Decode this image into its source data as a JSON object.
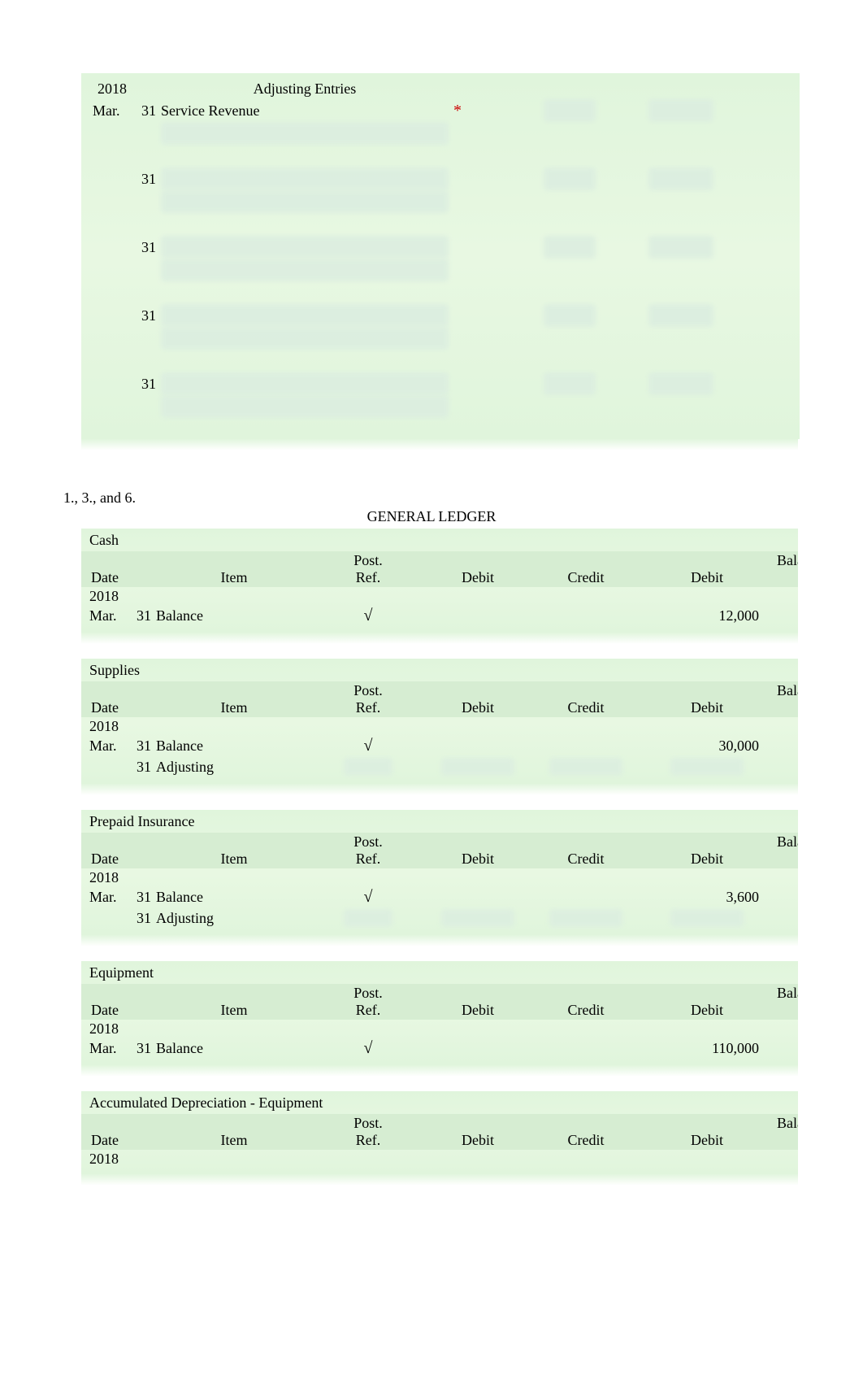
{
  "adjusting": {
    "year": "2018",
    "title": "Adjusting Entries",
    "rows": [
      {
        "month": "Mar.",
        "day": "31",
        "item": "Service Revenue",
        "asterisk": "*"
      },
      {
        "month": "",
        "day": "31",
        "item": ""
      },
      {
        "month": "",
        "day": "31",
        "item": ""
      },
      {
        "month": "",
        "day": "31",
        "item": ""
      },
      {
        "month": "",
        "day": "31",
        "item": ""
      }
    ]
  },
  "section_label": "1., 3., and 6.",
  "ledger_title": "GENERAL LEDGER",
  "headers": {
    "date": "Date",
    "item": "Item",
    "post_top": "Post.",
    "post_bot": "Ref.",
    "debit": "Debit",
    "credit": "Credit",
    "bal_top": "Balan",
    "bal_debit": "Debit"
  },
  "year": "2018",
  "accounts": [
    {
      "name": "Cash",
      "rows": [
        {
          "month": "Mar.",
          "day": "31",
          "item": "Balance",
          "ref": "√",
          "debit": "",
          "credit": "",
          "bal_debit": "12,000",
          "blurred": false
        }
      ]
    },
    {
      "name": "Supplies",
      "rows": [
        {
          "month": "Mar.",
          "day": "31",
          "item": "Balance",
          "ref": "√",
          "debit": "",
          "credit": "",
          "bal_debit": "30,000",
          "blurred": false
        },
        {
          "month": "",
          "day": "31",
          "item": "Adjusting",
          "ref": "",
          "debit": "",
          "credit": "",
          "bal_debit": "",
          "blurred": true
        }
      ]
    },
    {
      "name": "Prepaid Insurance",
      "rows": [
        {
          "month": "Mar.",
          "day": "31",
          "item": "Balance",
          "ref": "√",
          "debit": "",
          "credit": "",
          "bal_debit": "3,600",
          "blurred": false
        },
        {
          "month": "",
          "day": "31",
          "item": "Adjusting",
          "ref": "",
          "debit": "",
          "credit": "",
          "bal_debit": "",
          "blurred": true
        }
      ]
    },
    {
      "name": "Equipment",
      "rows": [
        {
          "month": "Mar.",
          "day": "31",
          "item": "Balance",
          "ref": "√",
          "debit": "",
          "credit": "",
          "bal_debit": "110,000",
          "blurred": false
        }
      ]
    },
    {
      "name": "Accumulated Depreciation - Equipment",
      "rows": []
    }
  ],
  "colors": {
    "panel_bg": "#e0f5dc",
    "header_bg": "#d6edd2",
    "blur_bg": "#dceee0",
    "asterisk": "#cc0000",
    "text": "#000000"
  }
}
